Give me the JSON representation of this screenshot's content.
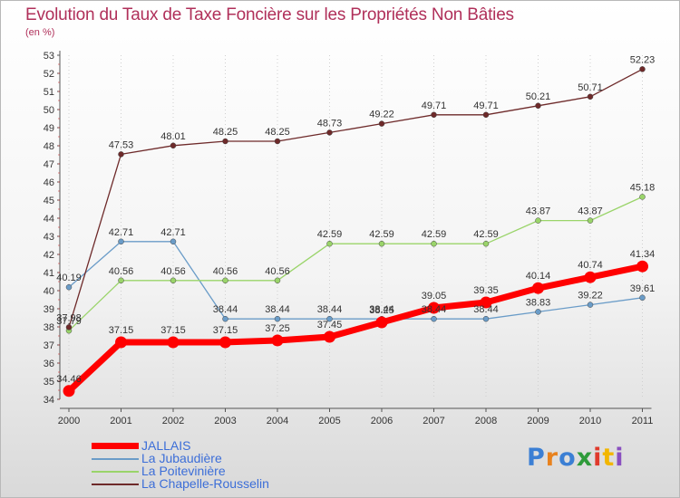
{
  "header": {
    "title": "Evolution du Taux de Taxe Foncière sur les Propriétés Non Bâties",
    "unit": "(en %)"
  },
  "colors": {
    "title": "#b0305a",
    "axis": "#555555",
    "legend_text": "#3c6ed8",
    "grid": "#cfcfcf"
  },
  "logo": {
    "text": "Proxiti",
    "letters": [
      {
        "ch": "P",
        "color": "#3b7fd4"
      },
      {
        "ch": "r",
        "color": "#e8821e"
      },
      {
        "ch": "o",
        "color": "#3b7fd4"
      },
      {
        "ch": "x",
        "color": "#2e9b3a"
      },
      {
        "ch": "i",
        "color": "#e03a2c"
      },
      {
        "ch": "t",
        "color": "#f2b600"
      },
      {
        "ch": "i",
        "color": "#8a4fc0"
      }
    ]
  },
  "chart_data": {
    "type": "line",
    "title": "Evolution du Taux de Taxe Foncière sur les Propriétés Non Bâties",
    "ylabel": "(en %)",
    "xlabel": "",
    "x": [
      "2000",
      "2001",
      "2002",
      "2003",
      "2004",
      "2005",
      "2006",
      "2007",
      "2008",
      "2009",
      "2010",
      "2011"
    ],
    "ylim": [
      34,
      53
    ],
    "yticks": [
      34,
      35,
      36,
      37,
      38,
      39,
      40,
      41,
      42,
      43,
      44,
      45,
      46,
      47,
      48,
      49,
      50,
      51,
      52,
      53
    ],
    "grid": "vertical dotted lines",
    "legend_position": "bottom-left",
    "series": [
      {
        "name": "JALLAIS",
        "color": "#ff0000",
        "emphasis": true,
        "values": [
          34.46,
          37.15,
          37.15,
          37.15,
          37.25,
          37.45,
          38.25,
          39.05,
          39.35,
          40.14,
          40.74,
          41.34
        ],
        "labels": [
          "34.46",
          "37.15",
          "37.15",
          "37.15",
          "37.25",
          "37.45",
          "38.25",
          "39.05",
          "39.35",
          "40.14",
          "40.74",
          "41.34"
        ]
      },
      {
        "name": "La Jubaudière",
        "color": "#6a9cc8",
        "values": [
          40.19,
          42.71,
          42.71,
          38.44,
          38.44,
          38.44,
          38.44,
          38.44,
          38.44,
          38.83,
          39.22,
          39.61
        ],
        "labels": [
          "40.19",
          "42.71",
          "42.71",
          "38.44",
          "38.44",
          "38.44",
          "38.44",
          "38.44",
          "38.44",
          "38.83",
          "39.22",
          "39.61"
        ]
      },
      {
        "name": "La Poitevinière",
        "color": "#9ad46a",
        "values": [
          37.79,
          40.56,
          40.56,
          40.56,
          40.56,
          42.59,
          42.59,
          42.59,
          42.59,
          43.87,
          43.87,
          45.18
        ],
        "labels": [
          "37.79",
          "40.56",
          "40.56",
          "40.56",
          "40.56",
          "42.59",
          "42.59",
          "42.59",
          "42.59",
          "43.87",
          "43.87",
          "45.18"
        ]
      },
      {
        "name": "La Chapelle-Rousselin",
        "color": "#6e2a2a",
        "values": [
          37.98,
          47.53,
          48.01,
          48.25,
          48.25,
          48.73,
          49.22,
          49.71,
          49.71,
          50.21,
          50.71,
          52.23
        ],
        "labels": [
          "37.98",
          "47.53",
          "48.01",
          "48.25",
          "48.25",
          "48.73",
          "49.22",
          "49.71",
          "49.71",
          "50.21",
          "50.71",
          "52.23"
        ]
      }
    ]
  }
}
